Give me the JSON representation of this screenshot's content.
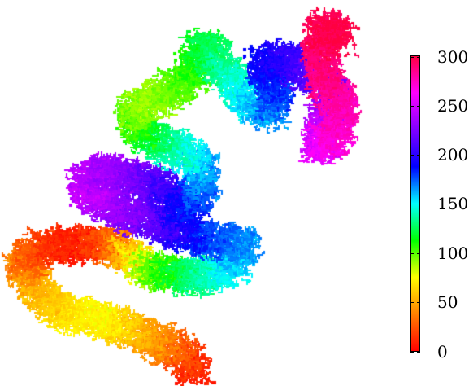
{
  "figure": {
    "colorbar": {
      "min": 0,
      "max": 300,
      "ticks": [
        "300",
        "250",
        "200",
        "150",
        "100",
        "50",
        "0"
      ],
      "colormap": [
        "#ff0000",
        "#ff8000",
        "#ffff00",
        "#00ff00",
        "#00ffff",
        "#0000ff",
        "#8000ff",
        "#ff00ff",
        "#ff0040"
      ]
    }
  }
}
